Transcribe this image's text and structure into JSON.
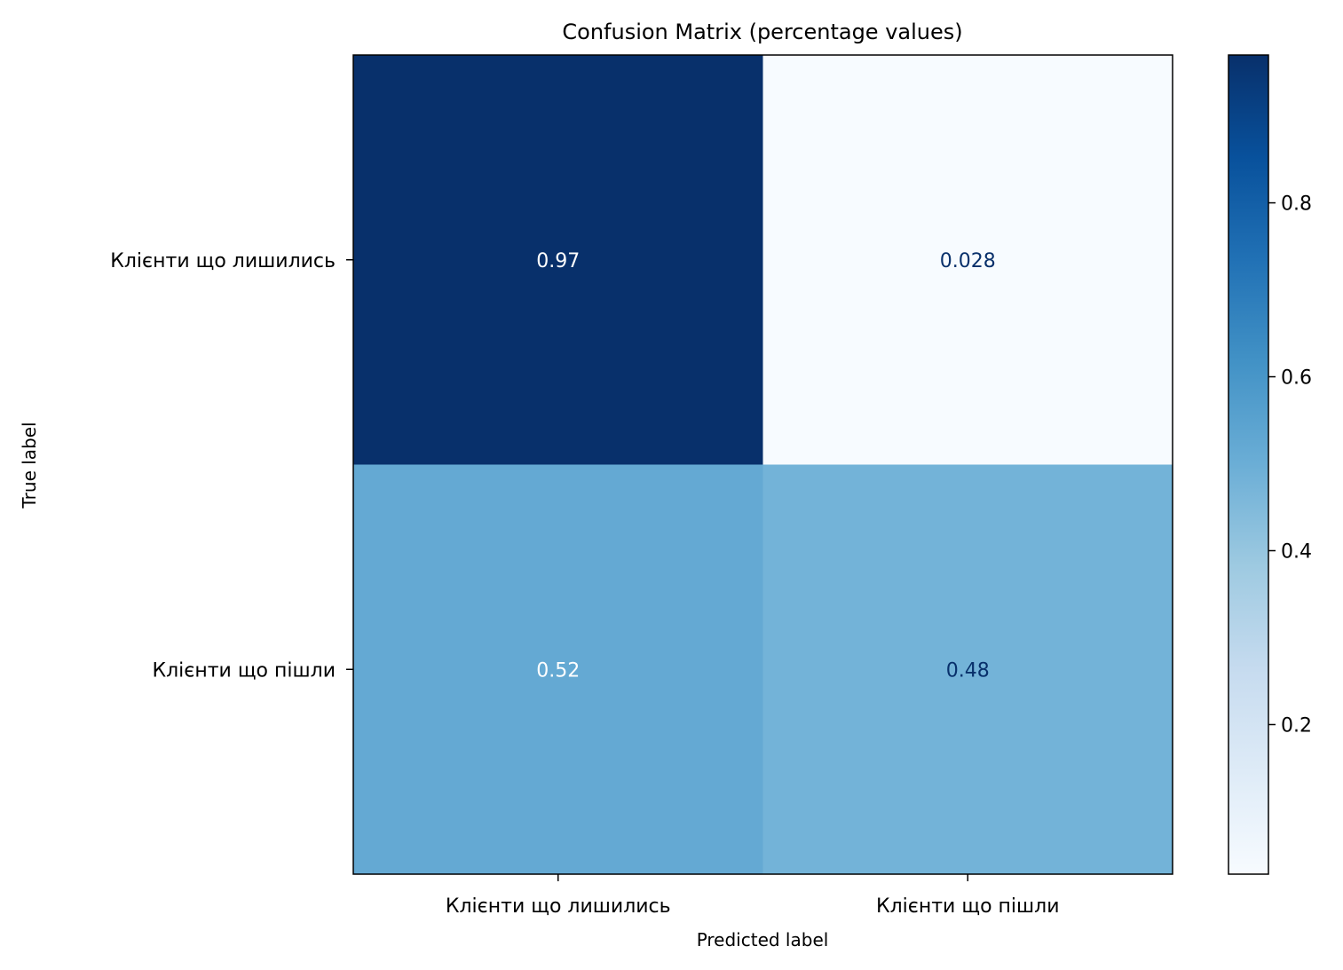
{
  "chart_data": {
    "type": "heatmap",
    "title": "Confusion Matrix (percentage values)",
    "xlabel": "Predicted label",
    "ylabel": "True label",
    "x_categories": [
      "Клієнти що лишились",
      "Клієнти що пішли"
    ],
    "y_categories": [
      "Клієнти що лишились",
      "Клієнти що пішли"
    ],
    "values": [
      [
        0.97,
        0.028
      ],
      [
        0.52,
        0.48
      ]
    ],
    "cell_labels": [
      [
        "0.97",
        "0.028"
      ],
      [
        "0.52",
        "0.48"
      ]
    ],
    "colormap": "Blues",
    "colorbar": {
      "range": [
        0.028,
        0.97
      ],
      "ticks": [
        0.2,
        0.4,
        0.6,
        0.8
      ],
      "tick_labels": [
        "0.2",
        "0.4",
        "0.6",
        "0.8"
      ]
    },
    "colors": {
      "label_light": "#ffffff",
      "label_dark": "#08306b",
      "axes": "#000000"
    }
  }
}
